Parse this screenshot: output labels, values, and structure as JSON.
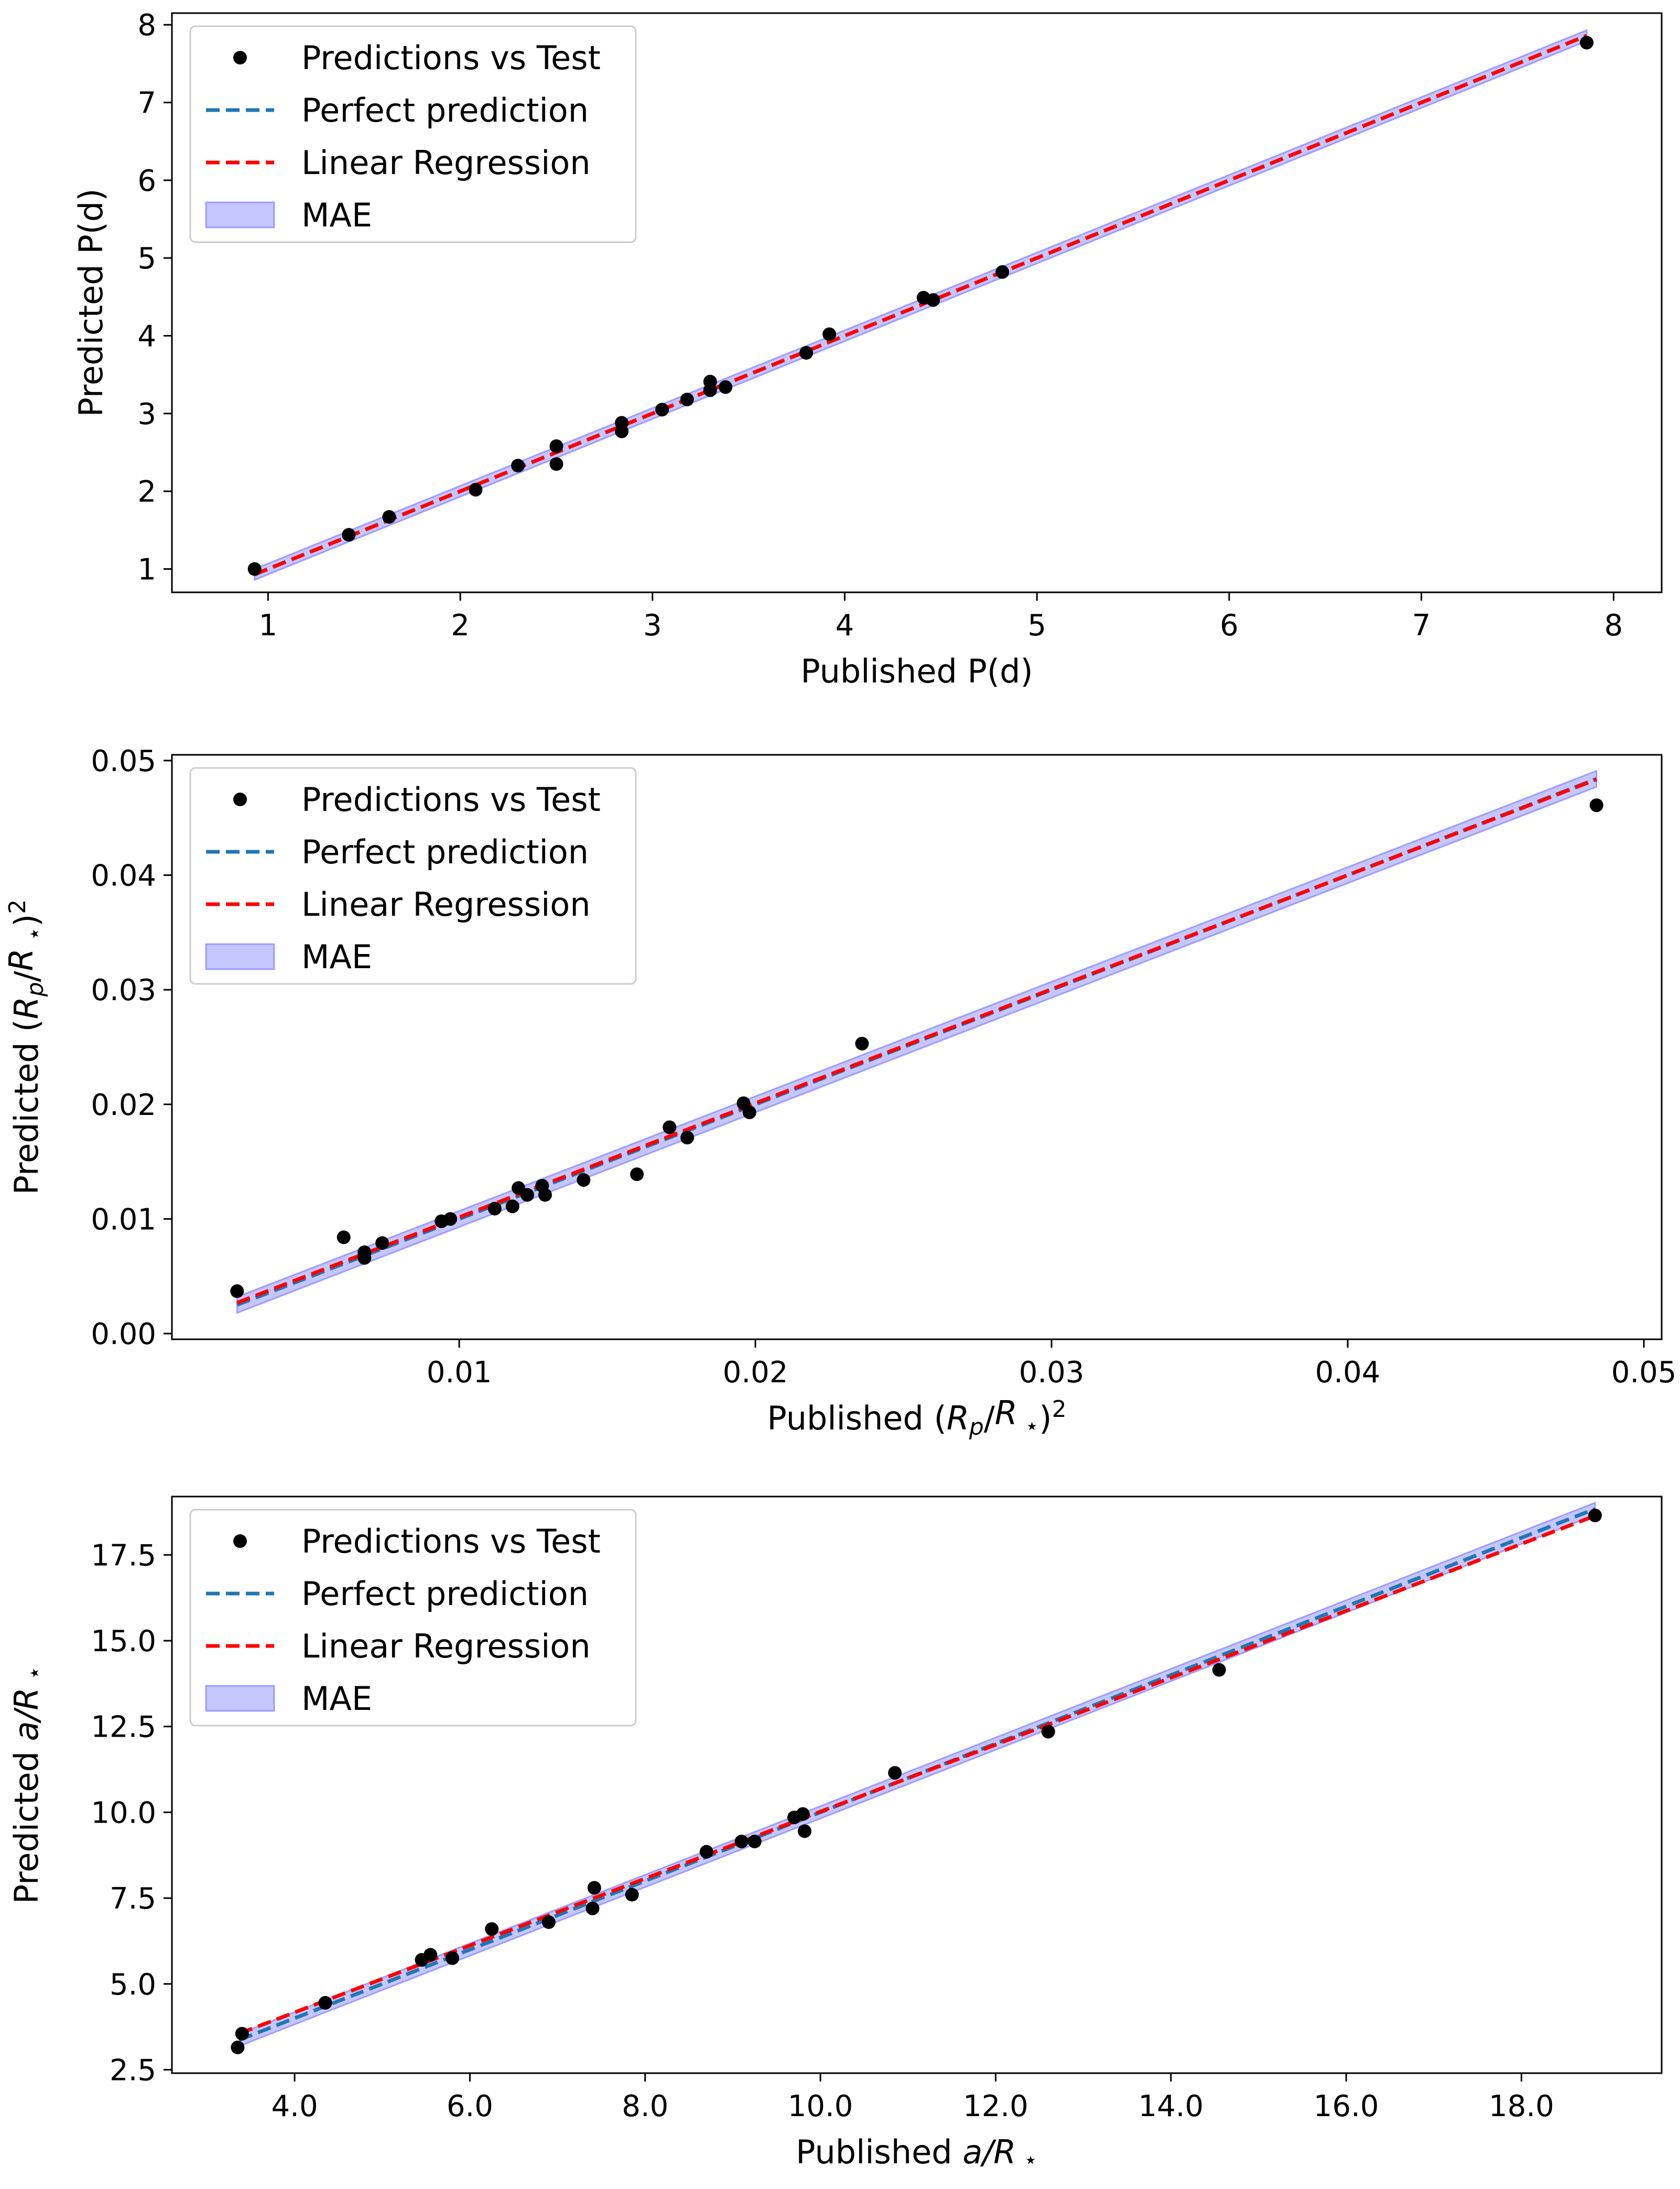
{
  "colors": {
    "points": "#000000",
    "perfect": "#1f77b4",
    "regression": "#ff0000",
    "mae_fill": "#8080ff",
    "mae_edge": "#6f6fff",
    "axis": "#000000",
    "legend_border": "#cccccc"
  },
  "legend": {
    "points_label": "Predictions vs Test",
    "perfect_label": "Perfect prediction",
    "regression_label": "Linear Regression",
    "mae_label": "MAE"
  },
  "chart_data": [
    {
      "type": "scatter",
      "id": "period",
      "xlabel": "Published P(d)",
      "ylabel": "Predicted P(d)",
      "xlim": [
        0.5,
        8.25
      ],
      "ylim": [
        0.7,
        8.15
      ],
      "xticks": [
        1,
        2,
        3,
        4,
        5,
        6,
        7,
        8
      ],
      "yticks": [
        1,
        2,
        3,
        4,
        5,
        6,
        7,
        8
      ],
      "tick_decimals": 0,
      "mae": 0.07,
      "perfect_line": [
        0.93,
        7.86
      ],
      "regression": {
        "slope": 1.0,
        "intercept": 0.0,
        "x_range": [
          0.93,
          7.86
        ]
      },
      "points": [
        [
          0.93,
          1.0
        ],
        [
          1.42,
          1.44
        ],
        [
          1.63,
          1.67
        ],
        [
          2.08,
          2.02
        ],
        [
          2.3,
          2.33
        ],
        [
          2.5,
          2.35
        ],
        [
          2.5,
          2.58
        ],
        [
          2.84,
          2.77
        ],
        [
          2.84,
          2.88
        ],
        [
          3.05,
          3.05
        ],
        [
          3.18,
          3.18
        ],
        [
          3.3,
          3.41
        ],
        [
          3.3,
          3.3
        ],
        [
          3.38,
          3.34
        ],
        [
          3.8,
          3.78
        ],
        [
          3.92,
          4.02
        ],
        [
          4.41,
          4.49
        ],
        [
          4.46,
          4.46
        ],
        [
          4.82,
          4.82
        ],
        [
          7.86,
          7.77
        ]
      ]
    },
    {
      "type": "scatter",
      "id": "radius-ratio",
      "xlabel": "Published (R_p/R_*)^2",
      "ylabel": "Predicted (R_p/R_*)^2",
      "xlim": [
        0.0003,
        0.0506
      ],
      "ylim": [
        -0.0005,
        0.0505
      ],
      "xticks": [
        0.01,
        0.02,
        0.03,
        0.04,
        0.05
      ],
      "yticks": [
        0.0,
        0.01,
        0.02,
        0.03,
        0.04,
        0.05
      ],
      "tick_decimals": 2,
      "mae": 0.0007,
      "perfect_line": [
        0.0025,
        0.0484
      ],
      "regression": {
        "slope": 0.995,
        "intercept": 0.0002,
        "x_range": [
          0.0025,
          0.0484
        ]
      },
      "points": [
        [
          0.0025,
          0.0037
        ],
        [
          0.0061,
          0.0084
        ],
        [
          0.0068,
          0.0066
        ],
        [
          0.0068,
          0.0071
        ],
        [
          0.0074,
          0.0079
        ],
        [
          0.0094,
          0.0098
        ],
        [
          0.0097,
          0.01
        ],
        [
          0.0112,
          0.0109
        ],
        [
          0.0118,
          0.0111
        ],
        [
          0.012,
          0.0127
        ],
        [
          0.0123,
          0.0121
        ],
        [
          0.0128,
          0.0129
        ],
        [
          0.0129,
          0.0121
        ],
        [
          0.0142,
          0.0134
        ],
        [
          0.016,
          0.0139
        ],
        [
          0.0171,
          0.018
        ],
        [
          0.0177,
          0.0171
        ],
        [
          0.0196,
          0.0201
        ],
        [
          0.0198,
          0.0193
        ],
        [
          0.0236,
          0.0253
        ],
        [
          0.0484,
          0.0461
        ]
      ]
    },
    {
      "type": "scatter",
      "id": "semi-major-axis",
      "xlabel": "Published a/R_*",
      "ylabel": "Predicted a/R_*",
      "xlim": [
        2.6,
        19.6
      ],
      "ylim": [
        2.4,
        19.2
      ],
      "xticks": [
        4,
        6,
        8,
        10,
        12,
        14,
        16,
        18
      ],
      "yticks": [
        2.5,
        5.0,
        7.5,
        10.0,
        12.5,
        15.0,
        17.5
      ],
      "tick_decimals": 1,
      "mae": 0.18,
      "perfect_line": [
        3.37,
        18.84
      ],
      "regression": {
        "slope": 0.975,
        "intercept": 0.27,
        "x_range": [
          3.37,
          18.84
        ]
      },
      "points": [
        [
          3.35,
          3.15
        ],
        [
          3.4,
          3.55
        ],
        [
          4.35,
          4.45
        ],
        [
          5.45,
          5.7
        ],
        [
          5.55,
          5.85
        ],
        [
          5.8,
          5.75
        ],
        [
          6.25,
          6.6
        ],
        [
          6.9,
          6.8
        ],
        [
          7.4,
          7.2
        ],
        [
          7.42,
          7.8
        ],
        [
          7.85,
          7.6
        ],
        [
          8.7,
          8.85
        ],
        [
          9.1,
          9.15
        ],
        [
          9.25,
          9.15
        ],
        [
          9.7,
          9.85
        ],
        [
          9.8,
          9.95
        ],
        [
          9.82,
          9.45
        ],
        [
          10.85,
          11.15
        ],
        [
          12.6,
          12.35
        ],
        [
          14.55,
          14.15
        ],
        [
          18.84,
          18.65
        ]
      ]
    }
  ]
}
